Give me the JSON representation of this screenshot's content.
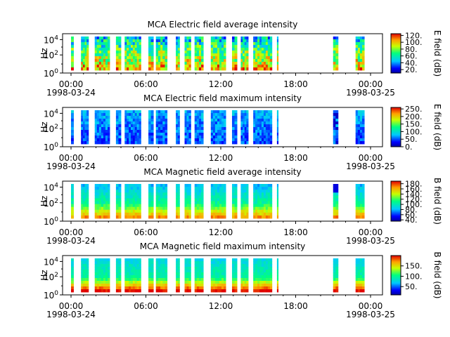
{
  "chart_data": [
    {
      "type": "heatmap",
      "title": "MCA  Electric field average intensity",
      "ylabel": "Hz",
      "y_scale": "log",
      "y_ticks": [
        "10^0",
        "10^2",
        "10^4"
      ],
      "x_ticks": [
        {
          "label": "00:00",
          "date": "1998-03-24"
        },
        {
          "label": "06:00",
          "date": ""
        },
        {
          "label": "12:00",
          "date": ""
        },
        {
          "label": "18:00",
          "date": ""
        },
        {
          "label": "00:00",
          "date": "1998-03-25"
        }
      ],
      "colorbar": {
        "label": "E field (dB)",
        "ticks": [
          "120.",
          "100.",
          "80.",
          "60.",
          "40.",
          "20."
        ],
        "range": [
          10,
          125
        ]
      },
      "data_hours": [
        [
          0.0,
          0.2
        ],
        [
          0.8,
          1.4
        ],
        [
          1.9,
          3.1
        ],
        [
          3.6,
          4.0
        ],
        [
          4.3,
          5.6
        ],
        [
          6.2,
          6.6
        ],
        [
          6.8,
          7.7
        ],
        [
          8.4,
          8.7
        ],
        [
          9.1,
          9.6
        ],
        [
          9.9,
          10.6
        ],
        [
          11.2,
          12.4
        ],
        [
          12.9,
          13.3
        ],
        [
          13.6,
          14.2
        ],
        [
          14.6,
          16.1
        ],
        [
          16.5,
          16.6
        ],
        [
          21.0,
          21.4
        ],
        [
          22.8,
          23.5
        ]
      ]
    },
    {
      "type": "heatmap",
      "title": "MCA  Electric field maximum intensity",
      "ylabel": "Hz",
      "y_scale": "log",
      "y_ticks": [
        "10^0",
        "10^2",
        "10^4"
      ],
      "x_ticks": [
        {
          "label": "00:00",
          "date": "1998-03-24"
        },
        {
          "label": "06:00",
          "date": ""
        },
        {
          "label": "12:00",
          "date": ""
        },
        {
          "label": "18:00",
          "date": ""
        },
        {
          "label": "00:00",
          "date": "1998-03-25"
        }
      ],
      "colorbar": {
        "label": "E field (dB)",
        "ticks": [
          "250.",
          "200.",
          "150.",
          "100.",
          "50.",
          "0."
        ],
        "range": [
          0,
          260
        ]
      },
      "data_hours": [
        [
          0.0,
          0.2
        ],
        [
          0.8,
          1.4
        ],
        [
          1.9,
          3.1
        ],
        [
          3.6,
          4.0
        ],
        [
          4.3,
          5.6
        ],
        [
          6.2,
          6.6
        ],
        [
          6.8,
          7.7
        ],
        [
          8.4,
          8.7
        ],
        [
          9.1,
          9.6
        ],
        [
          9.9,
          10.6
        ],
        [
          11.2,
          12.4
        ],
        [
          12.9,
          13.3
        ],
        [
          13.6,
          14.2
        ],
        [
          14.6,
          16.1
        ],
        [
          16.5,
          16.6
        ],
        [
          21.0,
          21.4
        ],
        [
          22.8,
          23.5
        ]
      ]
    },
    {
      "type": "heatmap",
      "title": "MCA  Magnetic field average intensity",
      "ylabel": "Hz",
      "y_scale": "log",
      "y_ticks": [
        "10^0",
        "10^2",
        "10^4"
      ],
      "x_ticks": [
        {
          "label": "00:00",
          "date": "1998-03-24"
        },
        {
          "label": "06:00",
          "date": ""
        },
        {
          "label": "12:00",
          "date": ""
        },
        {
          "label": "18:00",
          "date": ""
        },
        {
          "label": "00:00",
          "date": "1998-03-25"
        }
      ],
      "colorbar": {
        "label": "B field (dB)",
        "ticks": [
          "180.",
          "160.",
          "140.",
          "120.",
          "100.",
          "80.",
          "60.",
          "40."
        ],
        "range": [
          35,
          190
        ]
      },
      "data_hours": [
        [
          0.0,
          0.2
        ],
        [
          0.8,
          1.4
        ],
        [
          1.9,
          3.1
        ],
        [
          3.6,
          4.0
        ],
        [
          4.3,
          5.6
        ],
        [
          6.2,
          6.6
        ],
        [
          6.8,
          7.7
        ],
        [
          8.4,
          8.7
        ],
        [
          9.1,
          9.6
        ],
        [
          9.9,
          10.6
        ],
        [
          11.2,
          12.4
        ],
        [
          12.9,
          13.3
        ],
        [
          13.6,
          14.2
        ],
        [
          14.6,
          16.1
        ],
        [
          16.5,
          16.6
        ],
        [
          21.0,
          21.4
        ],
        [
          22.8,
          23.5
        ]
      ]
    },
    {
      "type": "heatmap",
      "title": "MCA  Magnetic field maximum intensity",
      "ylabel": "Hz",
      "y_scale": "log",
      "y_ticks": [
        "10^0",
        "10^2",
        "10^4"
      ],
      "x_ticks": [
        {
          "label": "00:00",
          "date": "1998-03-24"
        },
        {
          "label": "06:00",
          "date": ""
        },
        {
          "label": "12:00",
          "date": ""
        },
        {
          "label": "18:00",
          "date": ""
        },
        {
          "label": "00:00",
          "date": "1998-03-25"
        }
      ],
      "colorbar": {
        "label": "B field (dB)",
        "ticks": [
          "150.",
          "100.",
          "50."
        ],
        "range": [
          10,
          200
        ]
      },
      "data_hours": [
        [
          0.0,
          0.2
        ],
        [
          0.8,
          1.4
        ],
        [
          1.9,
          3.1
        ],
        [
          3.6,
          4.0
        ],
        [
          4.3,
          5.6
        ],
        [
          6.2,
          6.6
        ],
        [
          6.8,
          7.7
        ],
        [
          8.4,
          8.7
        ],
        [
          9.1,
          9.6
        ],
        [
          9.9,
          10.6
        ],
        [
          11.2,
          12.4
        ],
        [
          12.9,
          13.3
        ],
        [
          13.6,
          14.2
        ],
        [
          14.6,
          16.1
        ],
        [
          16.5,
          16.6
        ],
        [
          21.0,
          21.4
        ],
        [
          22.8,
          23.5
        ]
      ]
    }
  ]
}
